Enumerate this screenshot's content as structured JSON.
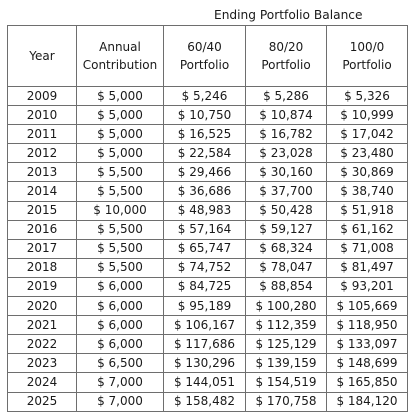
{
  "table": {
    "supertitle": "Ending Portfolio Balance",
    "headers": {
      "year": "Year",
      "contribution": [
        "Annual",
        "Contribution"
      ],
      "p6040": [
        "60/40",
        "Portfolio"
      ],
      "p8020": [
        "80/20",
        "Portfolio"
      ],
      "p1000": [
        "100/0",
        "Portfolio"
      ]
    },
    "rows": [
      {
        "year": "2009",
        "contribution": "$ 5,000",
        "p6040": "$ 5,246",
        "p8020": "$ 5,286",
        "p1000": "$ 5,326"
      },
      {
        "year": "2010",
        "contribution": "$ 5,000",
        "p6040": "$ 10,750",
        "p8020": "$ 10,874",
        "p1000": "$ 10,999"
      },
      {
        "year": "2011",
        "contribution": "$ 5,000",
        "p6040": "$ 16,525",
        "p8020": "$ 16,782",
        "p1000": "$ 17,042"
      },
      {
        "year": "2012",
        "contribution": "$ 5,000",
        "p6040": "$ 22,584",
        "p8020": "$ 23,028",
        "p1000": "$ 23,480"
      },
      {
        "year": "2013",
        "contribution": "$ 5,500",
        "p6040": "$ 29,466",
        "p8020": "$ 30,160",
        "p1000": "$ 30,869"
      },
      {
        "year": "2014",
        "contribution": "$ 5,500",
        "p6040": "$ 36,686",
        "p8020": "$ 37,700",
        "p1000": "$ 38,740"
      },
      {
        "year": "2015",
        "contribution": "$ 10,000",
        "p6040": "$ 48,983",
        "p8020": "$ 50,428",
        "p1000": "$ 51,918"
      },
      {
        "year": "2016",
        "contribution": "$ 5,500",
        "p6040": "$ 57,164",
        "p8020": "$ 59,127",
        "p1000": "$ 61,162"
      },
      {
        "year": "2017",
        "contribution": "$ 5,500",
        "p6040": "$ 65,747",
        "p8020": "$ 68,324",
        "p1000": "$ 71,008"
      },
      {
        "year": "2018",
        "contribution": "$ 5,500",
        "p6040": "$ 74,752",
        "p8020": "$ 78,047",
        "p1000": "$ 81,497"
      },
      {
        "year": "2019",
        "contribution": "$ 6,000",
        "p6040": "$ 84,725",
        "p8020": "$ 88,854",
        "p1000": "$ 93,201"
      },
      {
        "year": "2020",
        "contribution": "$ 6,000",
        "p6040": "$ 95,189",
        "p8020": "$ 100,280",
        "p1000": "$ 105,669"
      },
      {
        "year": "2021",
        "contribution": "$ 6,000",
        "p6040": "$ 106,167",
        "p8020": "$ 112,359",
        "p1000": "$ 118,950"
      },
      {
        "year": "2022",
        "contribution": "$ 6,000",
        "p6040": "$ 117,686",
        "p8020": "$ 125,129",
        "p1000": "$ 133,097"
      },
      {
        "year": "2023",
        "contribution": "$ 6,500",
        "p6040": "$ 130,296",
        "p8020": "$ 139,159",
        "p1000": "$ 148,699"
      },
      {
        "year": "2024",
        "contribution": "$ 7,000",
        "p6040": "$ 144,051",
        "p8020": "$ 154,519",
        "p1000": "$ 165,850"
      },
      {
        "year": "2025",
        "contribution": "$ 7,000",
        "p6040": "$ 158,482",
        "p8020": "$ 170,758",
        "p1000": "$ 184,120"
      }
    ]
  }
}
